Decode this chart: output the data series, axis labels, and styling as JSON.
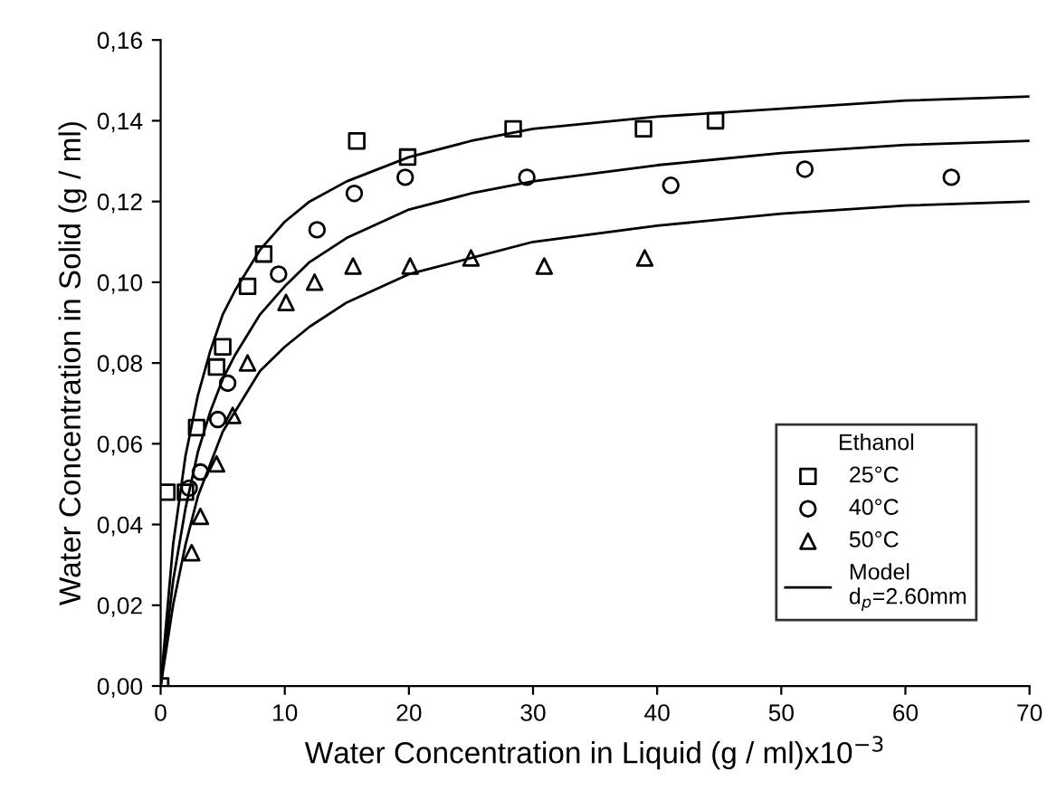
{
  "chart_data": {
    "type": "scatter",
    "xlabel": "Water Concentration in Liquid (g / ml)x10$^{−3}$",
    "ylabel": "Water Concentration in Solid (g / ml)",
    "legend_title": "Ethanol",
    "series": [
      {
        "name": "25°C",
        "marker": "square",
        "color": "#000000",
        "x": [
          0,
          0.5,
          2.0,
          2.9,
          4.5,
          5.0,
          7.0,
          8.3,
          15.8,
          19.9,
          28.4,
          38.9,
          44.7
        ],
        "values": [
          0,
          0.048,
          0.048,
          0.064,
          0.079,
          0.084,
          0.099,
          0.107,
          0.135,
          0.131,
          0.138,
          0.138,
          0.14
        ]
      },
      {
        "name": "40°C",
        "marker": "circle",
        "color": "#000000",
        "x": [
          2.3,
          3.2,
          4.6,
          5.4,
          9.5,
          12.6,
          15.6,
          19.7,
          29.5,
          41.1,
          51.9,
          63.7
        ],
        "values": [
          0.049,
          0.053,
          0.066,
          0.075,
          0.102,
          0.113,
          0.122,
          0.126,
          0.126,
          0.124,
          0.128,
          0.126
        ]
      },
      {
        "name": "50°C",
        "marker": "triangle",
        "color": "#000000",
        "x": [
          2.5,
          3.2,
          4.5,
          5.8,
          7.0,
          10.1,
          12.4,
          15.5,
          20.1,
          25.0,
          30.9,
          39.0
        ],
        "values": [
          0.033,
          0.042,
          0.055,
          0.067,
          0.08,
          0.095,
          0.1,
          0.104,
          0.104,
          0.106,
          0.104,
          0.106
        ]
      },
      {
        "name": "Model\nd$_{p}$=2.60mm",
        "type": "line",
        "marker": "none",
        "color": "#000000",
        "x": [
          0,
          1,
          2,
          3,
          4,
          5,
          6,
          8,
          10,
          12,
          15,
          20,
          25,
          30,
          40,
          50,
          60,
          70
        ],
        "values": [
          0,
          0.035,
          0.057,
          0.072,
          0.083,
          0.092,
          0.098,
          0.108,
          0.115,
          0.12,
          0.125,
          0.131,
          0.135,
          0.138,
          0.141,
          0.143,
          0.145,
          0.146
        ]
      },
      {
        "type": "line",
        "marker": "none",
        "color": "#000000",
        "x": [
          0,
          1,
          2,
          3,
          4,
          5,
          6,
          8,
          10,
          12,
          15,
          20,
          25,
          30,
          40,
          50,
          60,
          70
        ],
        "values": [
          0,
          0.026,
          0.044,
          0.058,
          0.068,
          0.076,
          0.082,
          0.092,
          0.099,
          0.105,
          0.111,
          0.118,
          0.122,
          0.125,
          0.129,
          0.132,
          0.134,
          0.135
        ]
      },
      {
        "type": "line",
        "marker": "none",
        "color": "#000000",
        "x": [
          0,
          1,
          2,
          3,
          4,
          5,
          6,
          8,
          10,
          12,
          15,
          20,
          25,
          30,
          40,
          50,
          60,
          70
        ],
        "values": [
          0,
          0.02,
          0.035,
          0.047,
          0.055,
          0.063,
          0.068,
          0.078,
          0.084,
          0.089,
          0.095,
          0.102,
          0.106,
          0.11,
          0.114,
          0.117,
          0.119,
          0.12
        ]
      }
    ],
    "xlim": [
      0,
      70
    ],
    "xticks": [
      0,
      10,
      20,
      30,
      40,
      50,
      60,
      70
    ],
    "ylim": [
      0,
      0.16
    ],
    "yticks": [
      {
        "value": 0,
        "label": "0,00"
      },
      {
        "value": 0.02,
        "label": "0,02"
      },
      {
        "value": 0.04,
        "label": "0,04"
      },
      {
        "value": 0.06,
        "label": "0,06"
      },
      {
        "value": 0.08,
        "label": "0,08"
      },
      {
        "value": 0.1,
        "label": "0,10"
      },
      {
        "value": 0.12,
        "label": "0,12"
      },
      {
        "value": 0.14,
        "label": "0,14"
      },
      {
        "value": 0.16,
        "label": "0,16"
      }
    ],
    "grid": false,
    "legend": "bottom right"
  }
}
